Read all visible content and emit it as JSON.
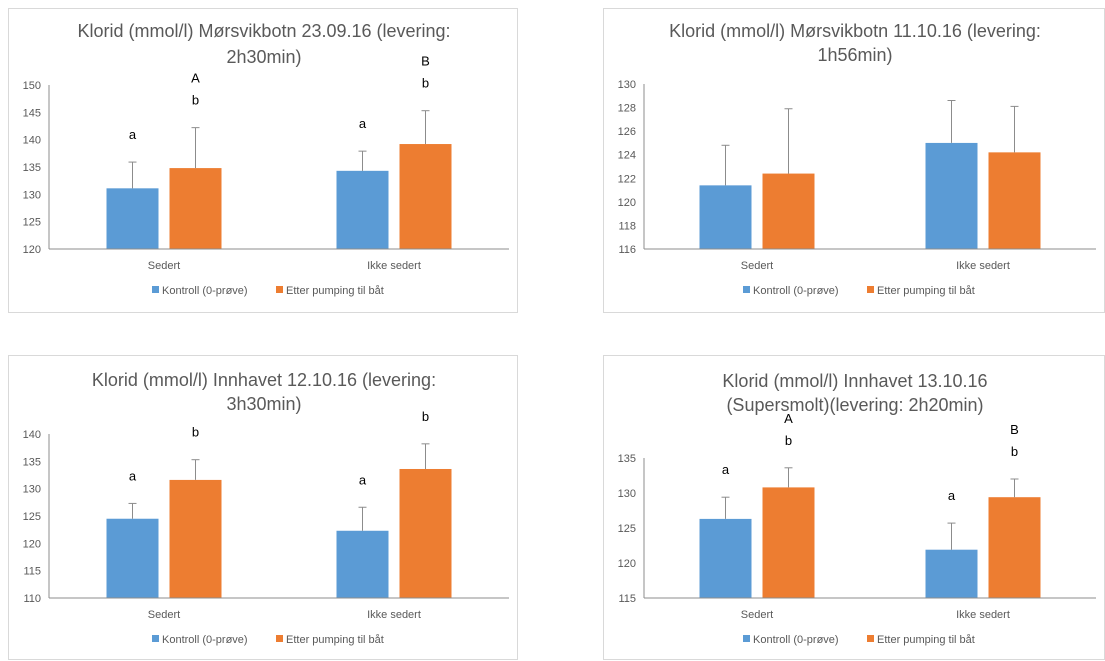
{
  "colors": {
    "control": "#5b9bd5",
    "pumped": "#ed7d31",
    "axis": "#8c8c8c",
    "errorbar": "#8c8c8c"
  },
  "chart_data": [
    {
      "type": "bar",
      "title": [
        "Klorid (mmol/l) Mørsvikbotn 23.09.16 (levering:",
        "2h30min)"
      ],
      "categories": [
        "Sedert",
        "Ikke sedert"
      ],
      "ylim": [
        120,
        150
      ],
      "yticks": [
        120,
        125,
        130,
        135,
        140,
        145,
        150
      ],
      "grid": false,
      "legend": "bottom",
      "series": [
        {
          "name": "Kontroll (0-prøve)",
          "values": [
            131.1,
            134.3
          ],
          "errors": [
            4.8,
            3.6
          ],
          "labels": [
            [
              "a"
            ],
            [
              "a"
            ]
          ]
        },
        {
          "name": "Etter pumping til båt",
          "values": [
            134.8,
            139.2
          ],
          "errors": [
            7.4,
            6.1
          ],
          "labels": [
            [
              "A",
              "b"
            ],
            [
              "B",
              "b"
            ]
          ]
        }
      ]
    },
    {
      "type": "bar",
      "title": [
        "Klorid (mmol/l) Mørsvikbotn 11.10.16 (levering:",
        "1h56min)"
      ],
      "categories": [
        "Sedert",
        "Ikke sedert"
      ],
      "ylim": [
        116,
        130
      ],
      "yticks": [
        116,
        118,
        120,
        122,
        124,
        126,
        128,
        130
      ],
      "grid": false,
      "legend": "bottom",
      "series": [
        {
          "name": "Kontroll (0-prøve)",
          "values": [
            121.4,
            125.0
          ],
          "errors": [
            3.4,
            3.6
          ],
          "labels": [
            [],
            []
          ]
        },
        {
          "name": "Etter pumping til båt",
          "values": [
            122.4,
            124.2
          ],
          "errors": [
            5.5,
            3.9
          ],
          "labels": [
            [],
            []
          ]
        }
      ]
    },
    {
      "type": "bar",
      "title": [
        "Klorid (mmol/l) Innhavet 12.10.16 (levering:",
        "3h30min)"
      ],
      "categories": [
        "Sedert",
        "Ikke sedert"
      ],
      "ylim": [
        110,
        140
      ],
      "yticks": [
        110,
        115,
        120,
        125,
        130,
        135,
        140
      ],
      "grid": false,
      "legend": "bottom",
      "series": [
        {
          "name": "Kontroll (0-prøve)",
          "values": [
            124.5,
            122.3
          ],
          "errors": [
            2.8,
            4.3
          ],
          "labels": [
            [
              "a"
            ],
            [
              "a"
            ]
          ]
        },
        {
          "name": "Etter pumping til båt",
          "values": [
            131.6,
            133.6
          ],
          "errors": [
            3.7,
            4.6
          ],
          "labels": [
            [
              "b"
            ],
            [
              "b"
            ]
          ]
        }
      ]
    },
    {
      "type": "bar",
      "title": [
        "Klorid (mmol/l) Innhavet 13.10.16",
        "(Supersmolt)(levering: 2h20min)"
      ],
      "categories": [
        "Sedert",
        "Ikke sedert"
      ],
      "ylim": [
        115,
        135
      ],
      "yticks": [
        115,
        120,
        125,
        130,
        135
      ],
      "grid": false,
      "legend": "bottom",
      "series": [
        {
          "name": "Kontroll (0-prøve)",
          "values": [
            126.3,
            121.9
          ],
          "errors": [
            3.1,
            3.8
          ],
          "labels": [
            [
              "a"
            ],
            [
              "a"
            ]
          ]
        },
        {
          "name": "Etter pumping til båt",
          "values": [
            130.8,
            129.4
          ],
          "errors": [
            2.8,
            2.6
          ],
          "labels": [
            [
              "A",
              "b"
            ],
            [
              "B",
              "b"
            ]
          ]
        }
      ]
    }
  ]
}
